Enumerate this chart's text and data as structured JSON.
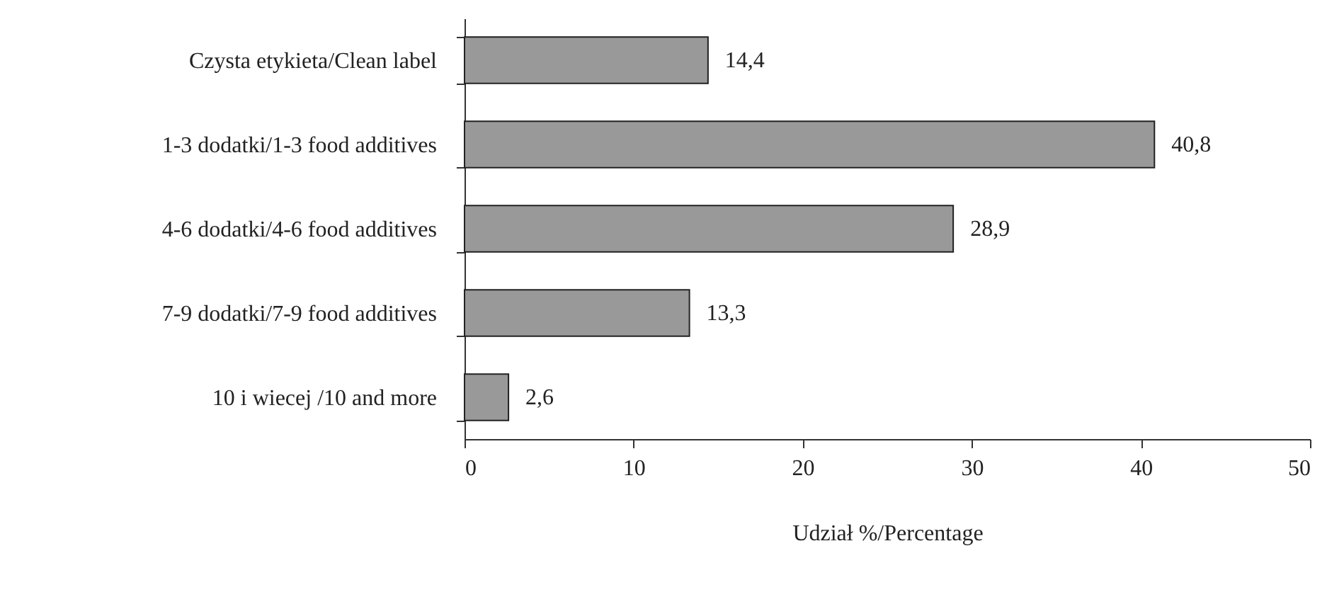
{
  "chart_data": {
    "type": "bar",
    "orientation": "horizontal",
    "xlabel": "Udział %/Percentage",
    "categories": [
      "Czysta etykieta/Clean label",
      "1-3 dodatki/1-3 food additives",
      "4-6 dodatki/4-6 food additives",
      "7-9 dodatki/7-9 food additives",
      "10 i wiecej /10 and more"
    ],
    "values": [
      14.4,
      40.8,
      28.9,
      13.3,
      2.6
    ],
    "value_labels": [
      "14,4",
      "40,8",
      "28,9",
      "13,3",
      "2,6"
    ],
    "color": "#999999",
    "xlim": [
      0,
      50
    ],
    "xticks": [
      0,
      10,
      20,
      30,
      40,
      50
    ],
    "grid": false
  }
}
